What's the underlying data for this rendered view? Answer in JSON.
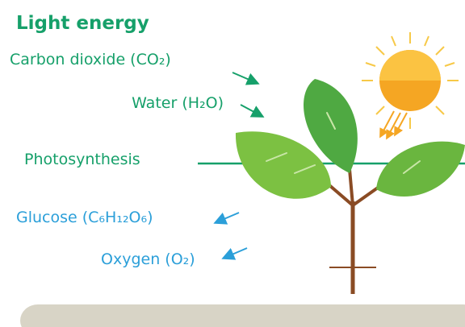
{
  "title": "Light energy",
  "inputs": [
    "Carbon dioxide (CO₂)",
    "Water (H₂O)"
  ],
  "process": "Photosynthesis",
  "outputs": [
    "Glucose (C₆H₁₂O₆)",
    "Oxygen (O₂)"
  ]
}
